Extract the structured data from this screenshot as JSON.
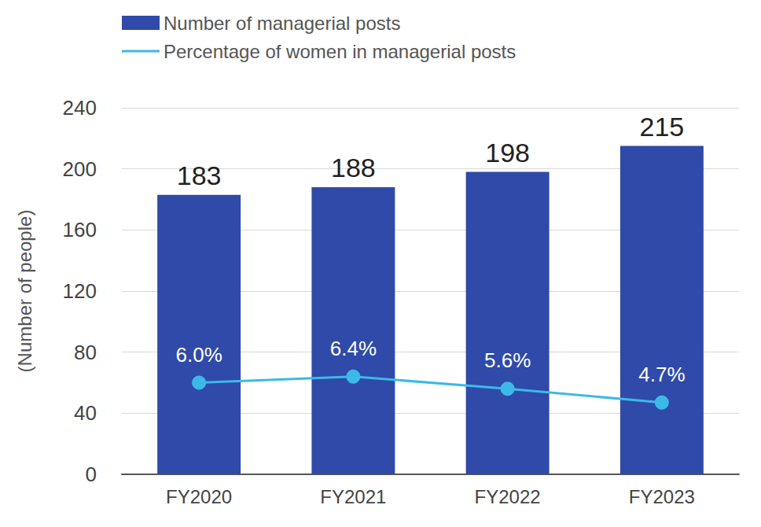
{
  "chart_data": {
    "type": "bar",
    "categories": [
      "FY2020",
      "FY2021",
      "FY2022",
      "FY2023"
    ],
    "y_label": "(Number of people)",
    "ylim": [
      0,
      240
    ],
    "yticks": [
      0,
      40,
      80,
      120,
      160,
      200,
      240
    ],
    "y2lim": [
      0,
      24
    ],
    "grid": true,
    "data_labels": true,
    "legend": "top-left",
    "series": [
      {
        "name": "Number of managerial posts",
        "type": "bar",
        "color": "#2f4aa8",
        "values": [
          183,
          188,
          198,
          215
        ]
      },
      {
        "name": "Percentage of women in managerial posts",
        "type": "line",
        "color": "#3cb9e8",
        "axis": "y2",
        "marker": "circle",
        "values": [
          6.0,
          6.4,
          5.6,
          4.7
        ],
        "value_labels": [
          "6.0%",
          "6.4%",
          "5.6%",
          "4.7%"
        ]
      }
    ]
  }
}
